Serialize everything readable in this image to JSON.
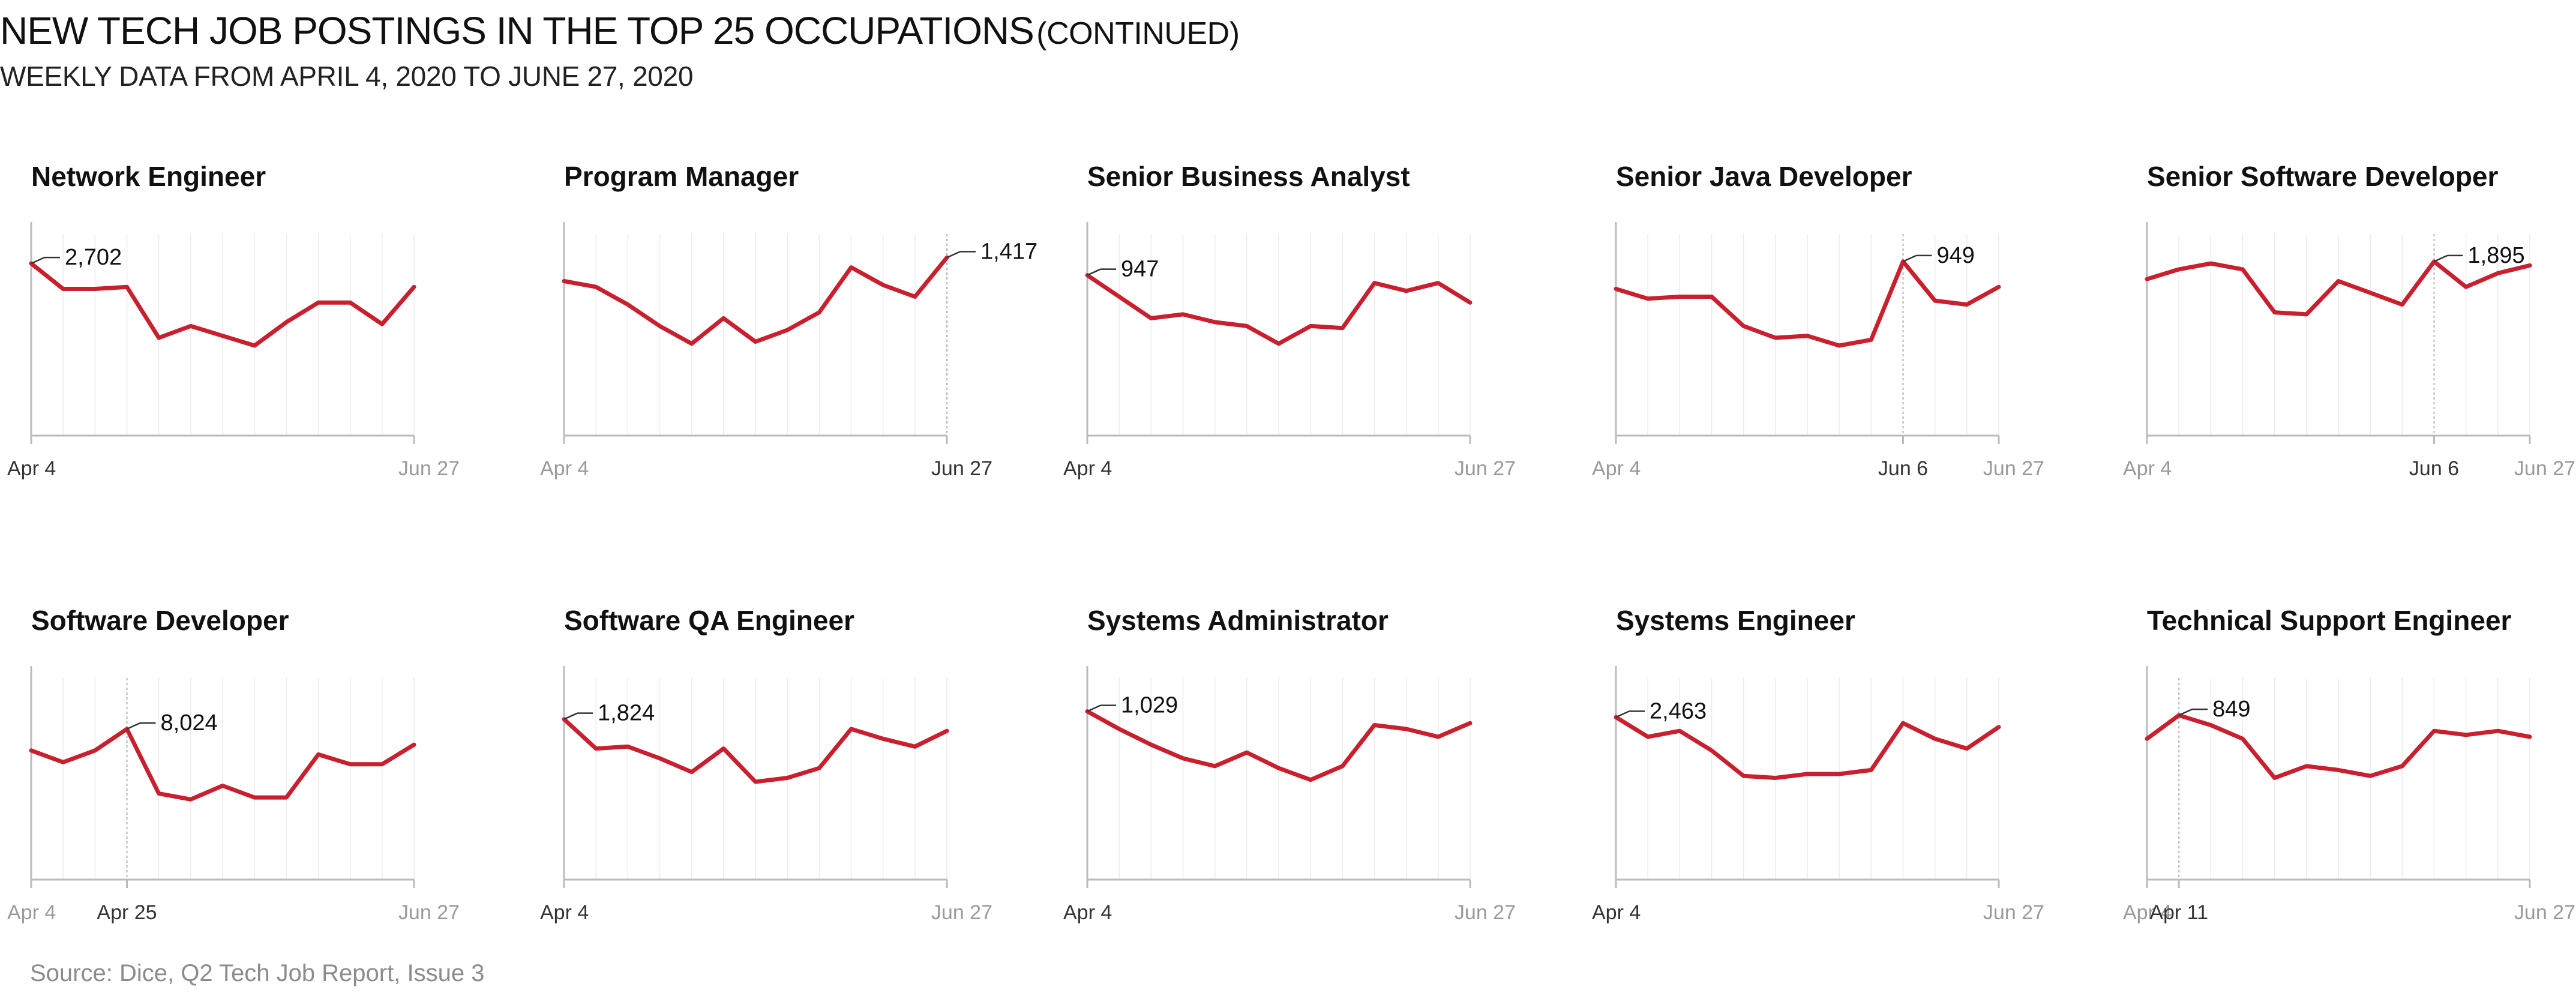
{
  "header": {
    "title": "NEW TECH JOB POSTINGS IN THE TOP 25 OCCUPATIONS",
    "title_suffix": "(CONTINUED)",
    "subtitle": "WEEKLY DATA FROM APRIL 4, 2020 TO JUNE 27, 2020"
  },
  "footer": {
    "source": "Source: Dice, Q2 Tech Job Report, Issue 3"
  },
  "colors": {
    "line": "#c8202f",
    "axis": "#bbbbbb",
    "grid": "#ececec",
    "tick_label": "#9a9a9a",
    "tick_label_dark": "#333333"
  },
  "chart_data": [
    {
      "type": "line",
      "title": "Network Engineer",
      "x_labels": [
        "Apr 4",
        "Jun 27"
      ],
      "highlight_label": "Apr 4",
      "annotation": "2,702",
      "peak_index": 0,
      "ylim": [
        0,
        1
      ],
      "values": [
        0.88,
        0.75,
        0.75,
        0.76,
        0.5,
        0.56,
        0.51,
        0.46,
        0.58,
        0.68,
        0.68,
        0.57,
        0.76
      ]
    },
    {
      "type": "line",
      "title": "Program Manager",
      "x_labels": [
        "Apr 4",
        "Jun 27"
      ],
      "highlight_label": "Jun 27",
      "annotation": "1,417",
      "peak_index": 12,
      "ylim": [
        0,
        1
      ],
      "values": [
        0.79,
        0.76,
        0.67,
        0.56,
        0.47,
        0.6,
        0.48,
        0.54,
        0.63,
        0.86,
        0.77,
        0.71,
        0.91
      ]
    },
    {
      "type": "line",
      "title": "Senior Business Analyst",
      "x_labels": [
        "Apr 4",
        "Jun 27"
      ],
      "highlight_label": "Apr 4",
      "annotation": "947",
      "peak_index": 0,
      "ylim": [
        0,
        1
      ],
      "values": [
        0.82,
        0.71,
        0.6,
        0.62,
        0.58,
        0.56,
        0.47,
        0.56,
        0.55,
        0.78,
        0.74,
        0.78,
        0.68
      ]
    },
    {
      "type": "line",
      "title": "Senior Java Developer",
      "x_labels": [
        "Apr 4",
        "Jun 6",
        "Jun 27"
      ],
      "highlight_label": "Jun 6",
      "annotation": "949",
      "peak_index": 9,
      "ylim": [
        0,
        1
      ],
      "values": [
        0.75,
        0.7,
        0.71,
        0.71,
        0.56,
        0.5,
        0.51,
        0.46,
        0.49,
        0.89,
        0.69,
        0.67,
        0.76
      ]
    },
    {
      "type": "line",
      "title": "Senior Software Developer",
      "x_labels": [
        "Apr 4",
        "Jun 6",
        "Jun 27"
      ],
      "highlight_label": "Jun 6",
      "annotation": "1,895",
      "peak_index": 9,
      "ylim": [
        0,
        1
      ],
      "values": [
        0.8,
        0.85,
        0.88,
        0.85,
        0.63,
        0.62,
        0.79,
        0.73,
        0.67,
        0.89,
        0.76,
        0.83,
        0.87
      ]
    },
    {
      "type": "line",
      "title": "Software Developer",
      "x_labels": [
        "Apr 4",
        "Apr 25",
        "Jun 27"
      ],
      "highlight_label": "Apr 25",
      "annotation": "8,024",
      "peak_index": 3,
      "ylim": [
        0,
        1
      ],
      "values": [
        0.66,
        0.6,
        0.66,
        0.77,
        0.44,
        0.41,
        0.48,
        0.42,
        0.42,
        0.64,
        0.59,
        0.59,
        0.69
      ]
    },
    {
      "type": "line",
      "title": "Software QA Engineer",
      "x_labels": [
        "Apr 4",
        "Jun 27"
      ],
      "highlight_label": "Apr 4",
      "annotation": "1,824",
      "peak_index": 0,
      "ylim": [
        0,
        1
      ],
      "values": [
        0.82,
        0.67,
        0.68,
        0.62,
        0.55,
        0.67,
        0.5,
        0.52,
        0.57,
        0.77,
        0.72,
        0.68,
        0.76
      ]
    },
    {
      "type": "line",
      "title": "Systems Administrator",
      "x_labels": [
        "Apr 4",
        "Jun 27"
      ],
      "highlight_label": "Apr 4",
      "annotation": "1,029",
      "peak_index": 0,
      "ylim": [
        0,
        1
      ],
      "values": [
        0.86,
        0.77,
        0.69,
        0.62,
        0.58,
        0.65,
        0.57,
        0.51,
        0.58,
        0.79,
        0.77,
        0.73,
        0.8
      ]
    },
    {
      "type": "line",
      "title": "Systems Engineer",
      "x_labels": [
        "Apr 4",
        "Jun 27"
      ],
      "highlight_label": "Apr 4",
      "annotation": "2,463",
      "peak_index": 0,
      "ylim": [
        0,
        1
      ],
      "values": [
        0.83,
        0.73,
        0.76,
        0.66,
        0.53,
        0.52,
        0.54,
        0.54,
        0.56,
        0.8,
        0.72,
        0.67,
        0.78
      ]
    },
    {
      "type": "line",
      "title": "Technical Support Engineer",
      "x_labels": [
        "Apr 4",
        "Apr 11",
        "Jun 27"
      ],
      "highlight_label": "Apr 11",
      "annotation": "849",
      "peak_index": 1,
      "ylim": [
        0,
        1
      ],
      "values": [
        0.72,
        0.84,
        0.79,
        0.72,
        0.52,
        0.58,
        0.56,
        0.53,
        0.58,
        0.76,
        0.74,
        0.76,
        0.73
      ]
    }
  ]
}
